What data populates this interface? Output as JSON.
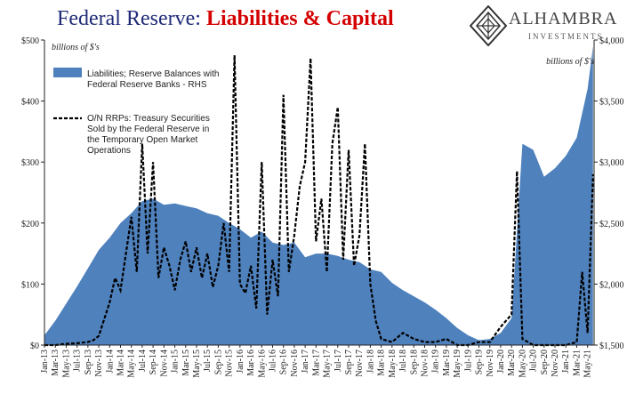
{
  "header": {
    "title_part1": "Federal Reserve:",
    "title_part2": "Liabilities & Capital"
  },
  "logo": {
    "name": "ALHAMBRA",
    "sub": "INVESTMENTS",
    "icon": "diamond-lattice-icon"
  },
  "chart_data": {
    "type": "area",
    "left_unit": "billions of $'s",
    "right_unit": "billions of $'s",
    "left_axis": {
      "ylim": [
        0,
        500
      ],
      "ticks": [
        "$0",
        "$100",
        "$200",
        "$300",
        "$400",
        "$500"
      ]
    },
    "right_axis": {
      "ylim": [
        1500,
        4000
      ],
      "ticks": [
        "$1,500",
        "$2,000",
        "$2,500",
        "$3,000",
        "$3,500",
        "$4,000"
      ]
    },
    "x_ticks": [
      "Jan-13",
      "Mar-13",
      "May-13",
      "Jul-13",
      "Sep-13",
      "Nov-13",
      "Jan-14",
      "Mar-14",
      "May-14",
      "Jul-14",
      "Sep-14",
      "Nov-14",
      "Jan-15",
      "Mar-15",
      "May-15",
      "Jul-15",
      "Sep-15",
      "Nov-15",
      "Jan-16",
      "Mar-16",
      "May-16",
      "Jul-16",
      "Sep-16",
      "Nov-16",
      "Jan-17",
      "Mar-17",
      "May-17",
      "Jul-17",
      "Sep-17",
      "Nov-17",
      "Jan-18",
      "Mar-18",
      "May-18",
      "Jul-18",
      "Sep-18",
      "Nov-18",
      "Jan-19",
      "Mar-19",
      "May-19",
      "Jul-19",
      "Sep-19",
      "Nov-19",
      "Jan-20",
      "Mar-20",
      "May-20",
      "Jul-20",
      "Sep-20",
      "Nov-20",
      "Jan-21",
      "Mar-21",
      "May-21"
    ],
    "grid": false,
    "legend_position": "top-left",
    "series": [
      {
        "name": "Liabilities; Reserve Balances with Federal Reserve Banks - RHS",
        "axis": "right",
        "style": "area",
        "color": "#4f81bd",
        "x": [
          "Jan-13",
          "Mar-13",
          "May-13",
          "Jul-13",
          "Sep-13",
          "Nov-13",
          "Jan-14",
          "Mar-14",
          "May-14",
          "Jul-14",
          "Sep-14",
          "Nov-14",
          "Jan-15",
          "Mar-15",
          "May-15",
          "Jul-15",
          "Sep-15",
          "Nov-15",
          "Jan-16",
          "Mar-16",
          "May-16",
          "Jul-16",
          "Sep-16",
          "Nov-16",
          "Jan-17",
          "Mar-17",
          "May-17",
          "Jul-17",
          "Sep-17",
          "Nov-17",
          "Jan-18",
          "Mar-18",
          "May-18",
          "Jul-18",
          "Sep-18",
          "Nov-18",
          "Jan-19",
          "Mar-19",
          "May-19",
          "Jul-19",
          "Sep-19",
          "Nov-19",
          "Jan-20",
          "Mar-20",
          "May-20",
          "Jul-20",
          "Sep-20",
          "Nov-20",
          "Jan-21",
          "Mar-21",
          "May-21",
          "Jun-21"
        ],
        "values": [
          1580,
          1700,
          1840,
          1980,
          2130,
          2280,
          2380,
          2500,
          2580,
          2680,
          2700,
          2650,
          2660,
          2640,
          2620,
          2580,
          2560,
          2500,
          2450,
          2380,
          2430,
          2340,
          2320,
          2340,
          2220,
          2250,
          2250,
          2230,
          2200,
          2180,
          2120,
          2100,
          2010,
          1950,
          1900,
          1850,
          1790,
          1720,
          1640,
          1580,
          1540,
          1550,
          1600,
          1720,
          3150,
          3100,
          2880,
          2950,
          3050,
          3200,
          3600,
          3950
        ]
      },
      {
        "name": "O/N RRPs: Treasury Securities Sold by the Federal Reserve in the Temporary Open Market Operations",
        "axis": "left",
        "style": "dashed",
        "color": "#000000",
        "x": [
          "Jan-13",
          "Mar-13",
          "May-13",
          "Jul-13",
          "Sep-13",
          "Oct-13",
          "Nov-13",
          "Jan-14",
          "Feb-14",
          "Mar-14",
          "Apr-14",
          "May-14",
          "Jun-14",
          "Jul-14",
          "Aug-14",
          "Sep-14",
          "Oct-14",
          "Nov-14",
          "Dec-14",
          "Jan-15",
          "Feb-15",
          "Mar-15",
          "Apr-15",
          "May-15",
          "Jun-15",
          "Jul-15",
          "Aug-15",
          "Sep-15",
          "Oct-15",
          "Nov-15",
          "Dec-15",
          "Jan-16",
          "Feb-16",
          "Mar-16",
          "Apr-16",
          "May-16",
          "Jun-16",
          "Jul-16",
          "Aug-16",
          "Sep-16",
          "Oct-16",
          "Nov-16",
          "Dec-16",
          "Jan-17",
          "Feb-17",
          "Mar-17",
          "Apr-17",
          "May-17",
          "Jun-17",
          "Jul-17",
          "Aug-17",
          "Sep-17",
          "Oct-17",
          "Nov-17",
          "Dec-17",
          "Jan-18",
          "Feb-18",
          "Mar-18",
          "May-18",
          "Jul-18",
          "Sep-18",
          "Nov-18",
          "Jan-19",
          "Mar-19",
          "May-19",
          "Jul-19",
          "Sep-19",
          "Nov-19",
          "Jan-20",
          "Mar-20",
          "Apr-20",
          "May-20",
          "Jul-20",
          "Sep-20",
          "Nov-20",
          "Jan-21",
          "Mar-21",
          "Apr-21",
          "May-21",
          "Jun-21"
        ],
        "values": [
          0,
          0,
          2,
          3,
          5,
          8,
          15,
          70,
          110,
          90,
          150,
          210,
          120,
          330,
          150,
          300,
          110,
          160,
          130,
          90,
          140,
          170,
          120,
          160,
          110,
          150,
          95,
          130,
          200,
          120,
          475,
          100,
          85,
          130,
          60,
          300,
          50,
          140,
          80,
          410,
          120,
          180,
          260,
          300,
          470,
          170,
          240,
          120,
          330,
          390,
          140,
          320,
          130,
          180,
          330,
          100,
          40,
          10,
          5,
          20,
          10,
          5,
          5,
          10,
          0,
          0,
          5,
          5,
          30,
          50,
          285,
          10,
          0,
          0,
          0,
          0,
          5,
          120,
          20,
          280
        ]
      }
    ]
  }
}
